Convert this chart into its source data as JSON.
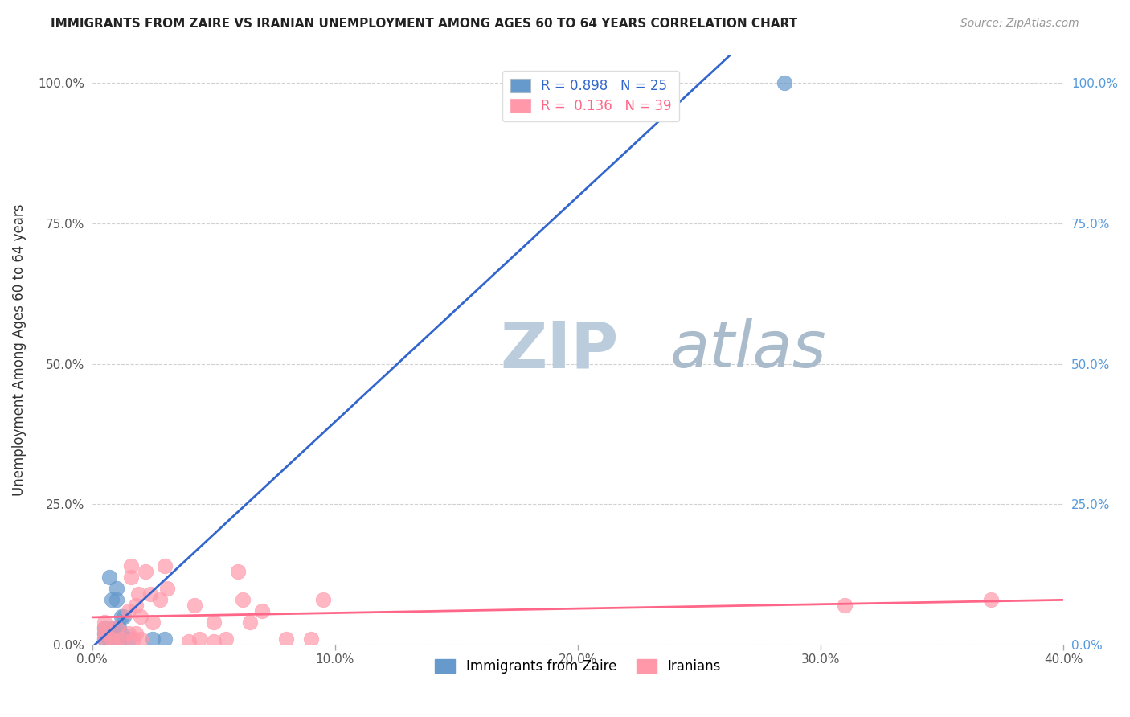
{
  "title": "IMMIGRANTS FROM ZAIRE VS IRANIAN UNEMPLOYMENT AMONG AGES 60 TO 64 YEARS CORRELATION CHART",
  "source": "Source: ZipAtlas.com",
  "ylabel": "Unemployment Among Ages 60 to 64 years",
  "xlim": [
    0.0,
    0.4
  ],
  "ylim": [
    0.0,
    1.05
  ],
  "xtick_labels": [
    "0.0%",
    "10.0%",
    "20.0%",
    "30.0%",
    "40.0%"
  ],
  "xtick_values": [
    0.0,
    0.1,
    0.2,
    0.3,
    0.4
  ],
  "ytick_labels": [
    "0.0%",
    "25.0%",
    "50.0%",
    "75.0%",
    "100.0%"
  ],
  "ytick_values": [
    0.0,
    0.25,
    0.5,
    0.75,
    1.0
  ],
  "blue_R": "0.898",
  "blue_N": "25",
  "pink_R": "0.136",
  "pink_N": "39",
  "blue_color": "#6699CC",
  "pink_color": "#FF99AA",
  "blue_line_color": "#3366CC",
  "pink_line_color": "#FF6688",
  "watermark_zip": "ZIP",
  "watermark_atlas": "atlas",
  "watermark_color_zip": "#BBCCDD",
  "watermark_color_atlas": "#AABBCC",
  "blue_scatter_x": [
    0.005,
    0.005,
    0.005,
    0.007,
    0.007,
    0.007,
    0.007,
    0.008,
    0.008,
    0.009,
    0.009,
    0.01,
    0.01,
    0.01,
    0.01,
    0.011,
    0.011,
    0.012,
    0.012,
    0.013,
    0.015,
    0.025,
    0.03,
    0.185,
    0.285
  ],
  "blue_scatter_y": [
    0.01,
    0.02,
    0.03,
    0.01,
    0.015,
    0.02,
    0.12,
    0.01,
    0.08,
    0.02,
    0.03,
    0.01,
    0.02,
    0.08,
    0.1,
    0.01,
    0.03,
    0.02,
    0.05,
    0.05,
    0.01,
    0.01,
    0.01,
    0.98,
    1.0
  ],
  "pink_scatter_x": [
    0.005,
    0.005,
    0.005,
    0.005,
    0.008,
    0.01,
    0.01,
    0.012,
    0.015,
    0.015,
    0.016,
    0.016,
    0.017,
    0.018,
    0.018,
    0.019,
    0.02,
    0.02,
    0.022,
    0.024,
    0.025,
    0.028,
    0.03,
    0.031,
    0.04,
    0.042,
    0.044,
    0.05,
    0.05,
    0.055,
    0.06,
    0.062,
    0.065,
    0.07,
    0.08,
    0.09,
    0.095,
    0.31,
    0.37
  ],
  "pink_scatter_y": [
    0.01,
    0.02,
    0.03,
    0.04,
    0.01,
    0.005,
    0.03,
    0.01,
    0.02,
    0.06,
    0.12,
    0.14,
    0.01,
    0.02,
    0.07,
    0.09,
    0.01,
    0.05,
    0.13,
    0.09,
    0.04,
    0.08,
    0.14,
    0.1,
    0.005,
    0.07,
    0.01,
    0.005,
    0.04,
    0.01,
    0.13,
    0.08,
    0.04,
    0.06,
    0.01,
    0.01,
    0.08,
    0.07,
    0.08
  ],
  "legend1_label_blue": "Immigrants from Zaire",
  "legend1_label_pink": "Iranians"
}
